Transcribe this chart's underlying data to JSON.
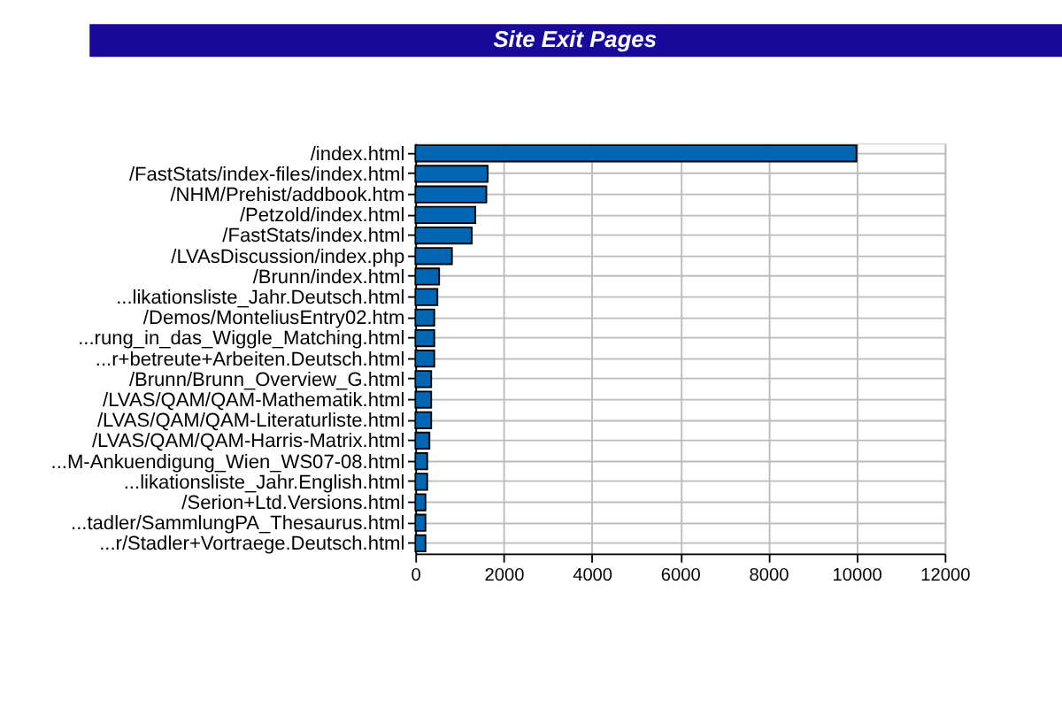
{
  "chart_data": {
    "type": "bar",
    "orientation": "horizontal",
    "title": "Site Exit Pages",
    "categories": [
      "/index.html",
      "/FastStats/index-files/index.html",
      "/NHM/Prehist/addbook.htm",
      "/Petzold/index.html",
      "/FastStats/index.html",
      "/LVAsDiscussion/index.php",
      "/Brunn/index.html",
      "...likationsliste_Jahr.Deutsch.html",
      "/Demos/MonteliusEntry02.htm",
      "...rung_in_das_Wiggle_Matching.html",
      "...r+betreute+Arbeiten.Deutsch.html",
      "/Brunn/Brunn_Overview_G.html",
      "/LVAS/QAM/QAM-Mathematik.html",
      "/LVAS/QAM/QAM-Literaturliste.html",
      "/LVAS/QAM/QAM-Harris-Matrix.html",
      "...M-Ankuendigung_Wien_WS07-08.html",
      "...likationsliste_Jahr.English.html",
      "/Serion+Ltd.Versions.html",
      "...tadler/SammlungPA_Thesaurus.html",
      "...r/Stadler+Vortraege.Deutsch.html"
    ],
    "series": [
      {
        "color": "#0066b3",
        "values": [
          10000,
          1640,
          1610,
          1360,
          1280,
          830,
          540,
          500,
          430,
          430,
          430,
          360,
          360,
          360,
          320,
          270,
          270,
          230,
          230,
          230
        ]
      }
    ],
    "xlim": [
      0,
      12000
    ],
    "xticks": [
      0,
      {
        "value": 2000,
        "label": "2000"
      },
      {
        "value": 4000,
        "label": "4000"
      },
      {
        "value": 6000,
        "label": "6000"
      },
      {
        "value": 8000,
        "label": "8000"
      },
      {
        "value": 10000,
        "label": "10000"
      },
      {
        "value": 12000,
        "label": "12000"
      }
    ],
    "grid": true,
    "legend": false
  }
}
